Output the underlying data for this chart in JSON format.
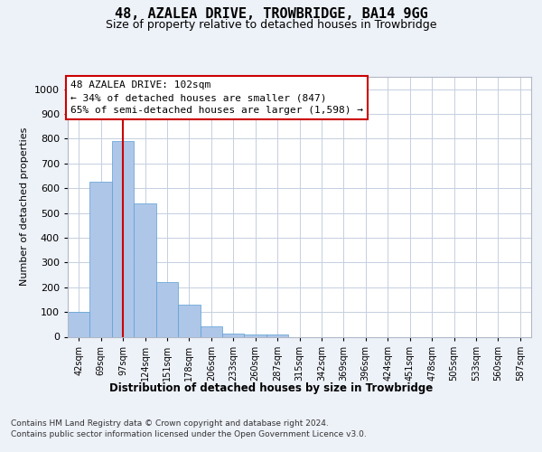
{
  "title": "48, AZALEA DRIVE, TROWBRIDGE, BA14 9GG",
  "subtitle": "Size of property relative to detached houses in Trowbridge",
  "xlabel": "Distribution of detached houses by size in Trowbridge",
  "ylabel": "Number of detached properties",
  "categories": [
    "42sqm",
    "69sqm",
    "97sqm",
    "124sqm",
    "151sqm",
    "178sqm",
    "206sqm",
    "233sqm",
    "260sqm",
    "287sqm",
    "315sqm",
    "342sqm",
    "369sqm",
    "396sqm",
    "424sqm",
    "451sqm",
    "478sqm",
    "505sqm",
    "533sqm",
    "560sqm",
    "587sqm"
  ],
  "values": [
    100,
    625,
    790,
    540,
    220,
    130,
    42,
    12,
    10,
    10,
    0,
    0,
    0,
    0,
    0,
    0,
    0,
    0,
    0,
    0,
    0
  ],
  "bar_color": "#aec6e8",
  "bar_edge_color": "#5a9fd4",
  "vline_x_index": 2,
  "vline_color": "#cc0000",
  "annotation_text": "48 AZALEA DRIVE: 102sqm\n← 34% of detached houses are smaller (847)\n65% of semi-detached houses are larger (1,598) →",
  "ylim": [
    0,
    1050
  ],
  "yticks": [
    0,
    100,
    200,
    300,
    400,
    500,
    600,
    700,
    800,
    900,
    1000
  ],
  "footer_line1": "Contains HM Land Registry data © Crown copyright and database right 2024.",
  "footer_line2": "Contains public sector information licensed under the Open Government Licence v3.0.",
  "bg_color": "#edf1f8",
  "plot_bg_color": "#ffffff",
  "grid_color": "#c5cfe0"
}
